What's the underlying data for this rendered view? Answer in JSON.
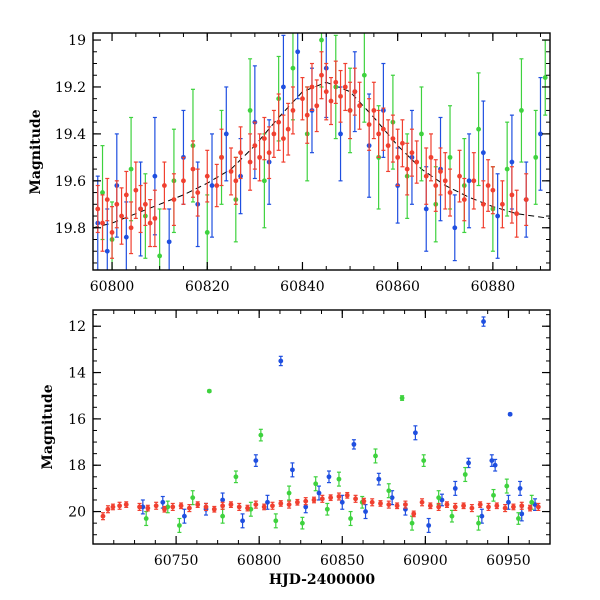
{
  "chart_data": [
    {
      "type": "scatter",
      "title": "",
      "xlabel": "",
      "ylabel": "Magnitude",
      "xlim": [
        60796,
        60892
      ],
      "ylim": [
        19.98,
        18.97
      ],
      "y_inverted": true,
      "grid": false,
      "xticks": [
        60800,
        60820,
        60840,
        60860,
        60880
      ],
      "xtick_labels": [
        "60800",
        "60820",
        "60840",
        "60860",
        "60880"
      ],
      "yticks": [
        19,
        19.2,
        19.4,
        19.6,
        19.8
      ],
      "ytick_labels": [
        "19",
        "19.2",
        "19.4",
        "19.6",
        "19.8"
      ],
      "errorbars": true,
      "model_curve": {
        "style": "dashed",
        "color": "#000000",
        "x": [
          60796,
          60800,
          60805,
          60810,
          60815,
          60820,
          60825,
          60830,
          60835,
          60840,
          60845,
          60850,
          60855,
          60860,
          60865,
          60870,
          60875,
          60880,
          60885,
          60892
        ],
        "y": [
          19.8,
          19.78,
          19.74,
          19.7,
          19.66,
          19.61,
          19.55,
          19.45,
          19.33,
          19.22,
          19.18,
          19.22,
          19.33,
          19.45,
          19.55,
          19.62,
          19.67,
          19.71,
          19.74,
          19.76
        ]
      },
      "series": [
        {
          "color": "#1f4fe0",
          "x": [
            60797,
            60799,
            60801,
            60803,
            60806,
            60809,
            60812,
            60815,
            60818,
            60821,
            60824,
            60827,
            60830,
            60833,
            60836,
            60839,
            60842,
            60845,
            60848,
            60851,
            60854,
            60857,
            60860,
            60863,
            60866,
            60869,
            60872,
            60875,
            60878,
            60881,
            60884,
            60887,
            60890
          ],
          "y": [
            19.78,
            19.9,
            19.62,
            19.84,
            19.72,
            19.58,
            19.86,
            19.5,
            19.7,
            19.62,
            19.4,
            19.58,
            19.35,
            19.52,
            19.2,
            19.05,
            19.3,
            19.12,
            19.4,
            19.22,
            19.45,
            19.3,
            19.62,
            19.5,
            19.72,
            19.55,
            19.8,
            19.6,
            19.48,
            19.75,
            19.52,
            19.68,
            19.4
          ],
          "err": [
            0.2,
            0.18,
            0.22,
            0.15,
            0.2,
            0.25,
            0.14,
            0.2,
            0.18,
            0.22,
            0.2,
            0.16,
            0.24,
            0.18,
            0.22,
            0.2,
            0.18,
            0.21,
            0.2,
            0.17,
            0.22,
            0.2,
            0.16,
            0.2,
            0.18,
            0.22,
            0.14,
            0.2,
            0.22,
            0.18,
            0.2,
            0.16,
            0.24
          ]
        },
        {
          "color": "#3ed23e",
          "x": [
            60798,
            60800,
            60804,
            60807,
            60810,
            60813,
            60817,
            60820,
            60823,
            60826,
            60829,
            60832,
            60835,
            60838,
            60841,
            60844,
            60847,
            60850,
            60853,
            60856,
            60859,
            60862,
            60865,
            60868,
            60871,
            60874,
            60877,
            60880,
            60883,
            60886,
            60889,
            60891
          ],
          "y": [
            19.65,
            19.85,
            19.55,
            19.75,
            19.92,
            19.6,
            19.45,
            19.82,
            19.5,
            19.68,
            19.3,
            19.6,
            19.25,
            19.12,
            19.4,
            19.0,
            19.2,
            19.3,
            19.15,
            19.5,
            19.35,
            19.58,
            19.4,
            19.7,
            19.5,
            19.62,
            19.38,
            19.72,
            19.55,
            19.3,
            19.5,
            19.16
          ],
          "err": [
            0.2,
            0.16,
            0.22,
            0.18,
            0.2,
            0.22,
            0.24,
            0.16,
            0.2,
            0.18,
            0.22,
            0.2,
            0.18,
            0.22,
            0.2,
            0.2,
            0.22,
            0.18,
            0.2,
            0.22,
            0.2,
            0.18,
            0.2,
            0.16,
            0.22,
            0.2,
            0.24,
            0.18,
            0.2,
            0.22,
            0.2,
            0.16
          ]
        },
        {
          "color": "#f04030",
          "x": [
            60797,
            60798,
            60799,
            60800,
            60801,
            60802,
            60803,
            60804,
            60805,
            60806,
            60807,
            60808,
            60809,
            60811,
            60813,
            60815,
            60817,
            60818,
            60820,
            60822,
            60823,
            60825,
            60826,
            60827,
            60829,
            60830,
            60831,
            60832,
            60833,
            60834,
            60835,
            60836,
            60837,
            60838,
            60840,
            60841,
            60842,
            60843,
            60844,
            60845,
            60846,
            60847,
            60848,
            60849,
            60850,
            60851,
            60852,
            60854,
            60855,
            60856,
            60857,
            60858,
            60859,
            60860,
            60861,
            60862,
            60863,
            60864,
            60866,
            60867,
            60868,
            60869,
            60870,
            60871,
            60873,
            60874,
            60876,
            60878,
            60879,
            60880,
            60882,
            60884,
            60885,
            60887
          ],
          "y": [
            19.72,
            19.78,
            19.68,
            19.82,
            19.7,
            19.75,
            19.66,
            19.8,
            19.64,
            19.72,
            19.7,
            19.78,
            19.76,
            19.62,
            19.68,
            19.6,
            19.55,
            19.65,
            19.58,
            19.62,
            19.5,
            19.56,
            19.6,
            19.48,
            19.52,
            19.45,
            19.5,
            19.42,
            19.48,
            19.4,
            19.35,
            19.42,
            19.38,
            19.3,
            19.25,
            19.32,
            19.2,
            19.28,
            19.15,
            19.22,
            19.26,
            19.18,
            19.24,
            19.2,
            19.3,
            19.22,
            19.28,
            19.36,
            19.3,
            19.4,
            19.38,
            19.45,
            19.42,
            19.5,
            19.44,
            19.55,
            19.48,
            19.52,
            19.58,
            19.5,
            19.62,
            19.56,
            19.6,
            19.65,
            19.58,
            19.68,
            19.6,
            19.7,
            19.62,
            19.64,
            19.7,
            19.66,
            19.74,
            19.68
          ],
          "err": [
            0.1,
            0.12,
            0.09,
            0.11,
            0.1,
            0.12,
            0.1,
            0.11,
            0.12,
            0.1,
            0.09,
            0.1,
            0.12,
            0.1,
            0.11,
            0.1,
            0.12,
            0.1,
            0.11,
            0.09,
            0.12,
            0.1,
            0.1,
            0.11,
            0.12,
            0.1,
            0.1,
            0.09,
            0.11,
            0.1,
            0.12,
            0.1,
            0.11,
            0.1,
            0.09,
            0.12,
            0.1,
            0.11,
            0.1,
            0.12,
            0.1,
            0.09,
            0.11,
            0.1,
            0.12,
            0.1,
            0.1,
            0.11,
            0.12,
            0.1,
            0.09,
            0.11,
            0.1,
            0.12,
            0.1,
            0.11,
            0.1,
            0.09,
            0.12,
            0.1,
            0.11,
            0.1,
            0.12,
            0.1,
            0.11,
            0.09,
            0.12,
            0.1,
            0.11,
            0.1,
            0.1,
            0.12,
            0.1,
            0.11
          ]
        }
      ]
    },
    {
      "type": "scatter",
      "title": "",
      "xlabel": "HJD-2400000",
      "ylabel": "Magnitude",
      "xlim": [
        60700,
        60975
      ],
      "ylim": [
        21.4,
        11.3
      ],
      "y_inverted": true,
      "grid": false,
      "xticks": [
        60750,
        60800,
        60850,
        60900,
        60950
      ],
      "xtick_labels": [
        "60750",
        "60800",
        "60850",
        "60900",
        "60950"
      ],
      "yticks": [
        12,
        14,
        16,
        18,
        20
      ],
      "ytick_labels": [
        "12",
        "14",
        "16",
        "18",
        "20"
      ],
      "errorbars": true,
      "series": [
        {
          "color": "#1f4fe0",
          "x": [
            60730,
            60742,
            60755,
            60768,
            60778,
            60790,
            60798,
            60805,
            60813,
            60820,
            60828,
            60836,
            60842,
            60850,
            60857,
            60864,
            60872,
            60880,
            60888,
            60894,
            60902,
            60910,
            60918,
            60926,
            60934,
            60942,
            60950,
            60958,
            60966,
            60935,
            60951,
            60957,
            60940
          ],
          "y": [
            19.8,
            19.6,
            20.2,
            19.9,
            19.5,
            20.4,
            17.8,
            19.6,
            13.5,
            18.2,
            19.8,
            19.2,
            18.5,
            19.6,
            17.1,
            20.0,
            18.6,
            19.4,
            19.9,
            16.6,
            20.6,
            19.5,
            19.0,
            17.9,
            20.2,
            18.0,
            19.6,
            20.1,
            19.7,
            11.8,
            15.8,
            19.0,
            17.8
          ],
          "err": [
            0.3,
            0.25,
            0.3,
            0.25,
            0.3,
            0.3,
            0.25,
            0.3,
            0.2,
            0.3,
            0.25,
            0.3,
            0.25,
            0.3,
            0.2,
            0.3,
            0.25,
            0.3,
            0.25,
            0.3,
            0.3,
            0.25,
            0.3,
            0.2,
            0.3,
            0.25,
            0.3,
            0.3,
            0.25,
            0.2,
            0.05,
            0.3,
            0.25
          ]
        },
        {
          "color": "#3ed23e",
          "x": [
            60732,
            60745,
            60752,
            60760,
            60770,
            60778,
            60786,
            60795,
            60801,
            60810,
            60818,
            60826,
            60834,
            60841,
            60848,
            60855,
            60862,
            60870,
            60878,
            60886,
            60892,
            60899,
            60908,
            60916,
            60924,
            60932,
            60941,
            60949,
            60956,
            60964
          ],
          "y": [
            20.3,
            19.8,
            20.6,
            19.4,
            14.8,
            20.2,
            18.5,
            19.9,
            16.7,
            20.4,
            19.2,
            20.5,
            18.8,
            19.9,
            18.6,
            20.3,
            19.6,
            17.6,
            19.1,
            15.1,
            20.5,
            17.8,
            19.4,
            20.2,
            18.4,
            20.5,
            19.3,
            18.9,
            20.3,
            19.6
          ],
          "err": [
            0.3,
            0.25,
            0.3,
            0.3,
            0.05,
            0.3,
            0.25,
            0.3,
            0.25,
            0.3,
            0.3,
            0.25,
            0.3,
            0.25,
            0.3,
            0.3,
            0.25,
            0.3,
            0.3,
            0.1,
            0.3,
            0.25,
            0.3,
            0.25,
            0.3,
            0.3,
            0.25,
            0.3,
            0.25,
            0.3
          ]
        },
        {
          "color": "#f04030",
          "x": [
            60706,
            60709,
            60712,
            60716,
            60720,
            60728,
            60733,
            60738,
            60743,
            60748,
            60753,
            60758,
            60763,
            60768,
            60773,
            60778,
            60783,
            60788,
            60793,
            60798,
            60803,
            60808,
            60813,
            60818,
            60823,
            60828,
            60833,
            60838,
            60843,
            60848,
            60853,
            60858,
            60863,
            60868,
            60873,
            60878,
            60883,
            60888,
            60893,
            60898,
            60903,
            60908,
            60913,
            60918,
            60923,
            60928,
            60933,
            60938,
            60943,
            60948,
            60953,
            60958,
            60963,
            60968
          ],
          "y": [
            20.2,
            19.9,
            19.8,
            19.75,
            19.7,
            19.8,
            19.85,
            19.75,
            19.9,
            19.8,
            19.75,
            19.85,
            19.7,
            19.8,
            19.9,
            19.75,
            19.7,
            19.8,
            19.85,
            19.7,
            19.8,
            19.75,
            19.65,
            19.7,
            19.6,
            19.55,
            19.5,
            19.45,
            19.4,
            19.35,
            19.3,
            19.45,
            19.55,
            19.6,
            19.65,
            19.7,
            19.75,
            19.7,
            20.1,
            19.6,
            19.75,
            19.8,
            19.7,
            19.8,
            19.75,
            19.85,
            19.7,
            19.8,
            19.75,
            19.85,
            19.8,
            19.75,
            19.85,
            19.8
          ],
          "err": [
            0.15,
            0.15,
            0.12,
            0.15,
            0.12,
            0.15,
            0.12,
            0.15,
            0.12,
            0.15,
            0.12,
            0.15,
            0.12,
            0.15,
            0.12,
            0.15,
            0.12,
            0.15,
            0.12,
            0.15,
            0.12,
            0.15,
            0.12,
            0.15,
            0.12,
            0.15,
            0.12,
            0.15,
            0.12,
            0.15,
            0.12,
            0.15,
            0.12,
            0.15,
            0.12,
            0.15,
            0.12,
            0.15,
            0.12,
            0.15,
            0.12,
            0.15,
            0.12,
            0.15,
            0.12,
            0.15,
            0.12,
            0.15,
            0.12,
            0.15,
            0.12,
            0.15,
            0.12,
            0.15
          ]
        }
      ]
    }
  ]
}
